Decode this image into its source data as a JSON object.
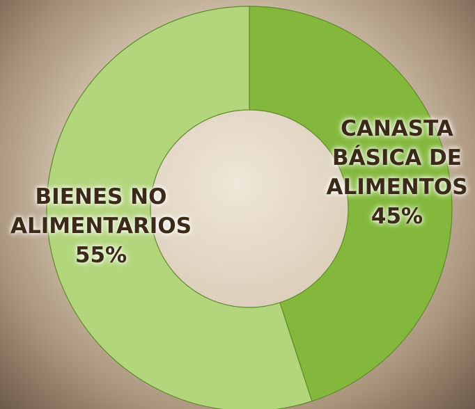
{
  "chart_data": {
    "type": "donut",
    "categories": [
      "CANASTA BÁSICA DE ALIMENTOS",
      "BIENES NO ALIMENTARIOS"
    ],
    "values": [
      45,
      55
    ],
    "value_labels": [
      "45%",
      "55%"
    ],
    "colors": [
      "#84b83c",
      "#b3d57c"
    ]
  }
}
